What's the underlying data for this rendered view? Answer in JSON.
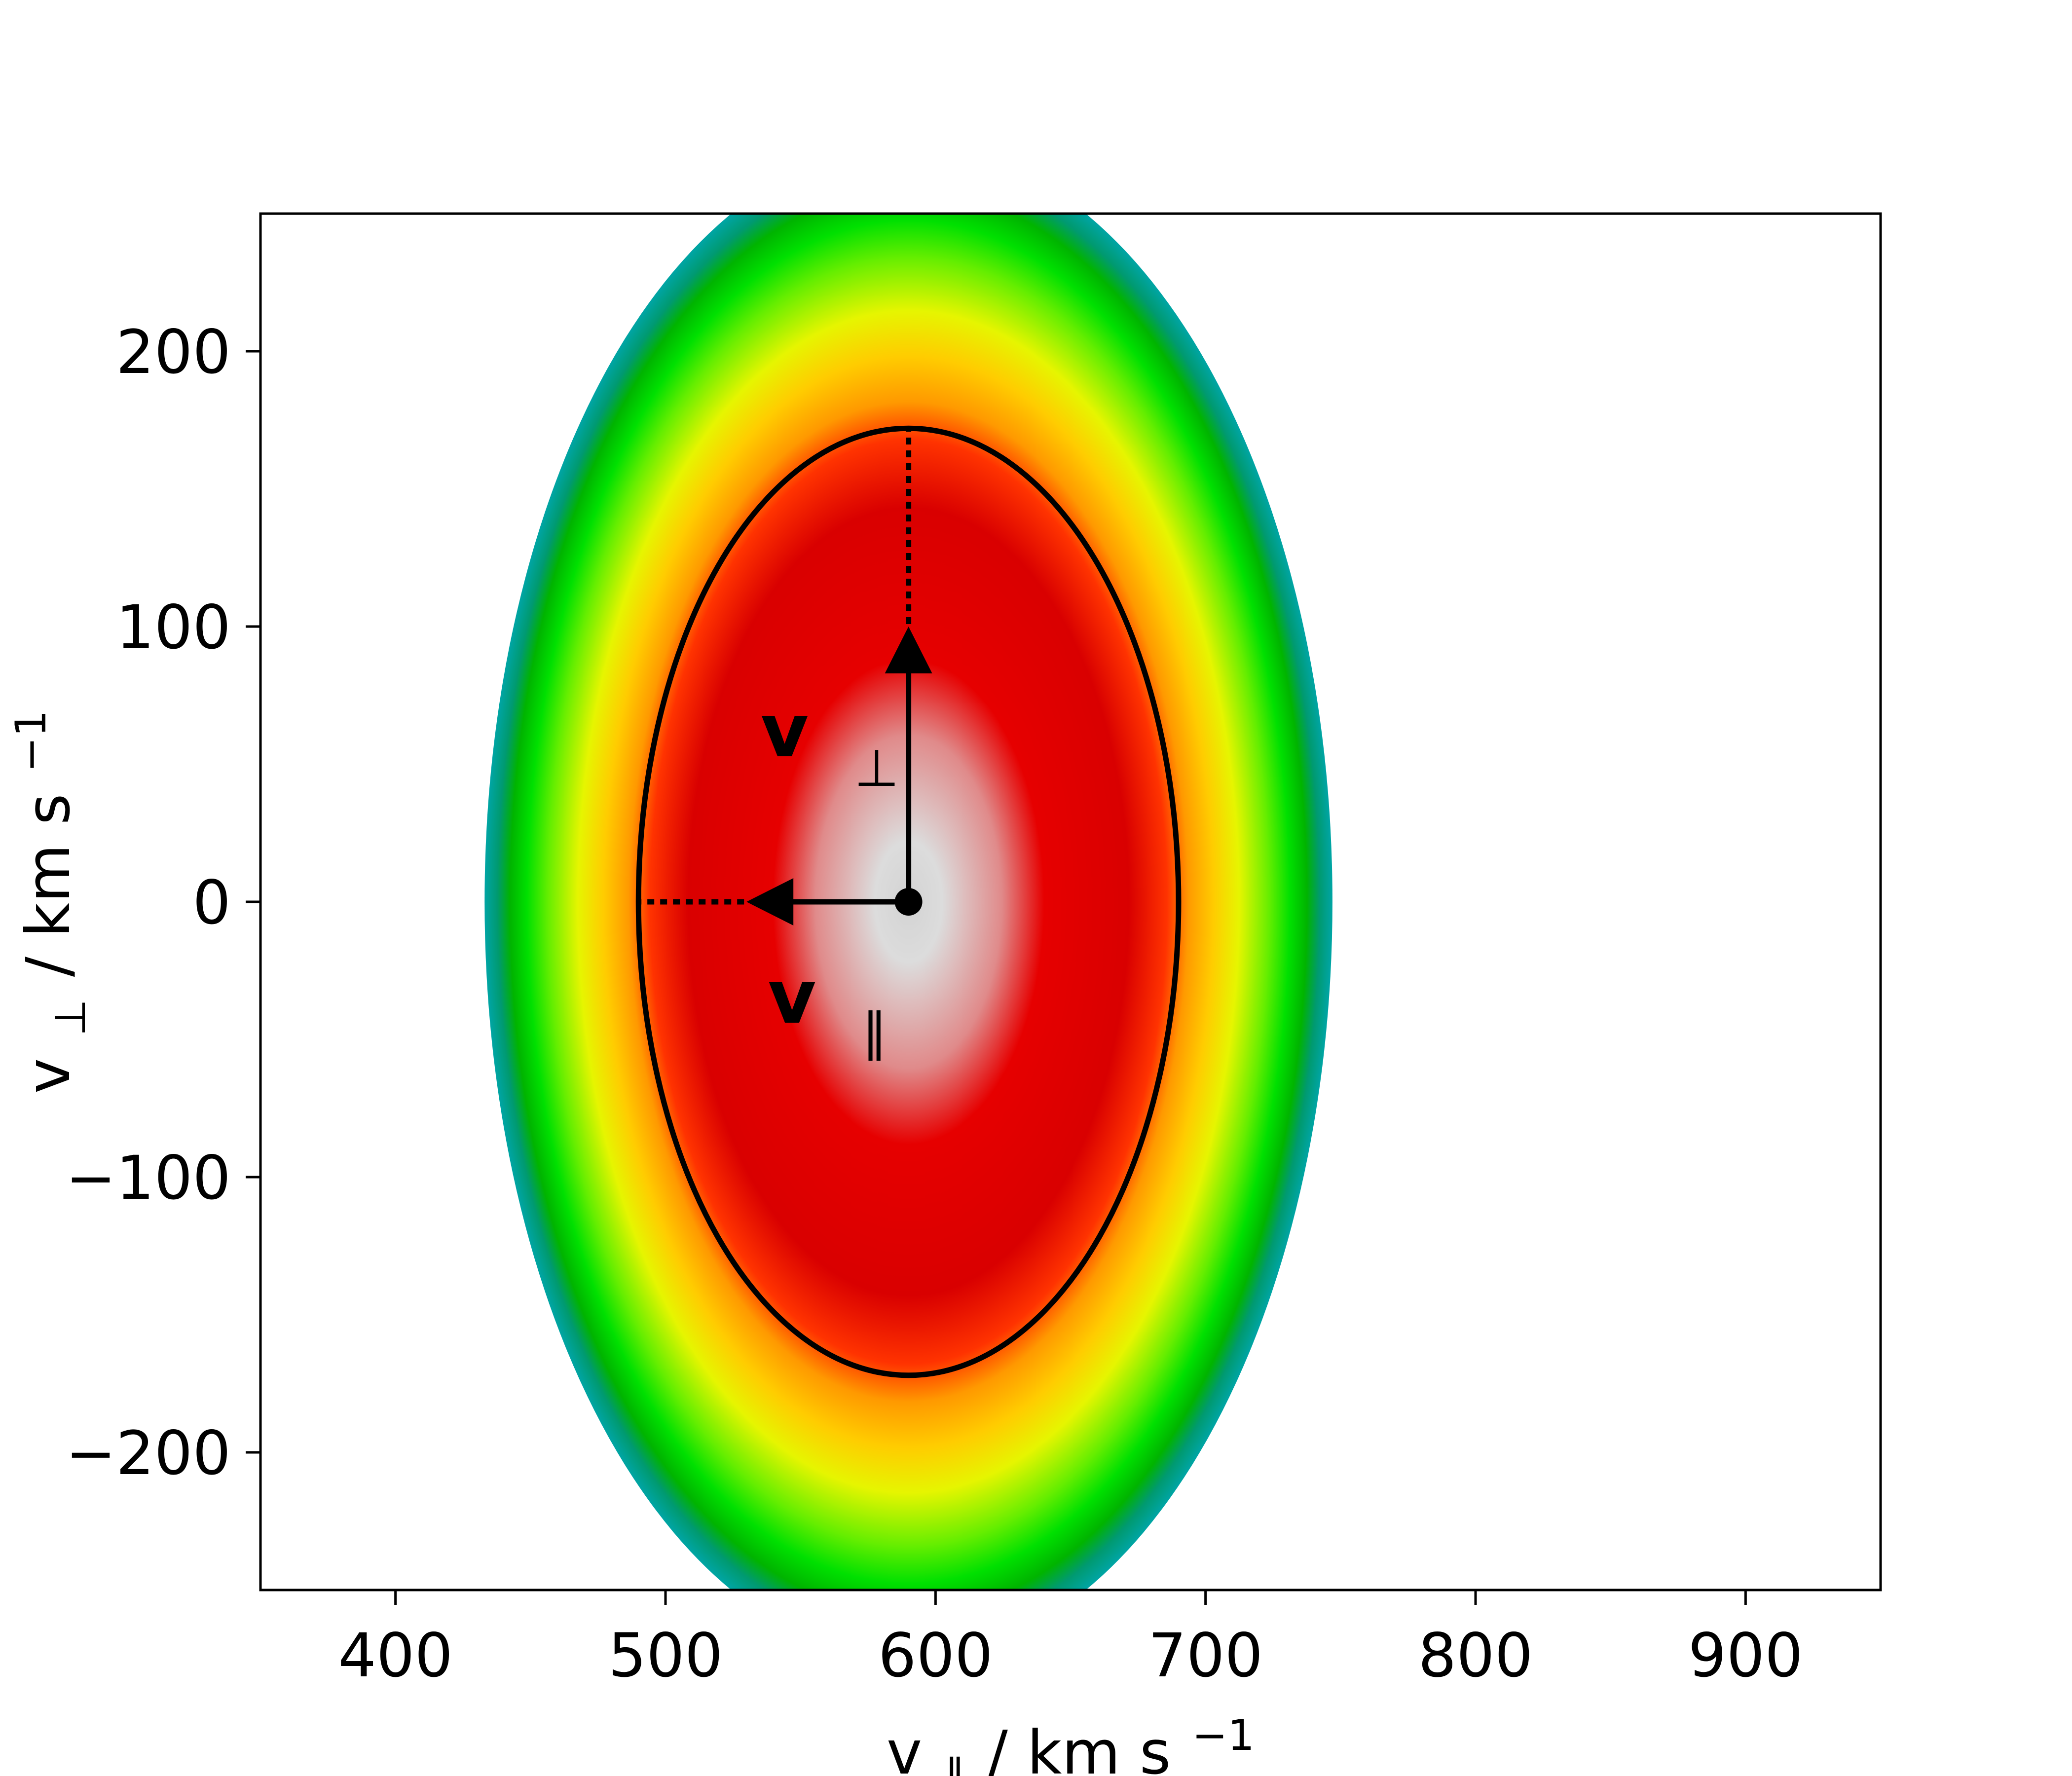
{
  "chart_data": {
    "type": "heatmap",
    "title": "",
    "xlabel": {
      "symbol": "v",
      "subscript": "∥",
      "unit": " / km s",
      "superscript": "−1"
    },
    "ylabel": {
      "symbol": "v",
      "subscript": "⊥",
      "unit": " / km s",
      "superscript": "−1"
    },
    "xlim": [
      350,
      950
    ],
    "ylim": [
      -250,
      250
    ],
    "xticks": [
      400,
      500,
      600,
      700,
      800,
      900
    ],
    "xtick_labels": [
      "400",
      "500",
      "600",
      "700",
      "800",
      "900"
    ],
    "yticks": [
      -200,
      -100,
      0,
      100,
      200
    ],
    "ytick_labels": [
      "−200",
      "−100",
      "0",
      "100",
      "200"
    ],
    "grid": false,
    "distribution": {
      "center": [
        590,
        0
      ],
      "thermal_speed_parallel": 100,
      "thermal_speed_perpendicular": 172,
      "colormap": [
        "#d3d3d3",
        "#ee0000",
        "#ff8c00",
        "#ffff00",
        "#00ee00",
        "#00aa00",
        "#00a0a0"
      ],
      "clip": "at a far contour level; the shown region is cut at the plot top/bottom"
    },
    "ellipse": {
      "center": [
        590,
        0
      ],
      "semi_axis_parallel": 100,
      "semi_axis_perpendicular": 172,
      "color": "#000000"
    },
    "vectors": [
      {
        "name": "v_perp",
        "from": [
          590,
          0
        ],
        "to": [
          590,
          100
        ],
        "dotted_to": [
          590,
          172
        ]
      },
      {
        "name": "v_par",
        "from": [
          590,
          0
        ],
        "to": [
          530,
          0
        ],
        "dotted_to": [
          490,
          0
        ]
      }
    ],
    "annotations": [
      {
        "text": "v",
        "subscript": "⊥",
        "bold": true
      },
      {
        "text": "v",
        "subscript": "∥",
        "bold": true
      }
    ]
  }
}
